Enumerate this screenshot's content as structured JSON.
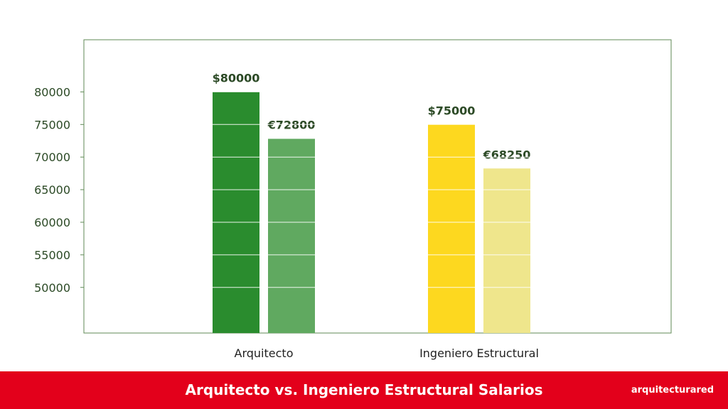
{
  "chart_data": {
    "type": "bar",
    "categories": [
      "Arquitecto",
      "Ingeniero Estructural"
    ],
    "values": [
      [
        80000,
        72800
      ],
      [
        75000,
        68250
      ]
    ],
    "data_labels": [
      [
        "$80000",
        "€72800"
      ],
      [
        "$75000",
        "€68250"
      ]
    ],
    "bar_colors": [
      [
        "#2a8c2e",
        "#60a960"
      ],
      [
        "#fdd81f",
        "#efe68c"
      ]
    ],
    "yticks": [
      50000,
      55000,
      60000,
      65000,
      70000,
      75000,
      80000
    ],
    "ylim": [
      43000,
      88000
    ],
    "grid": true
  },
  "colors": {
    "axis_text": "#2c4a26",
    "frame": "#5f8a55",
    "footer_bg": "#e3001b"
  },
  "footer": {
    "title": "Arquitecto vs. Ingeniero Estructural Salarios",
    "brand": "arquitecturared"
  }
}
